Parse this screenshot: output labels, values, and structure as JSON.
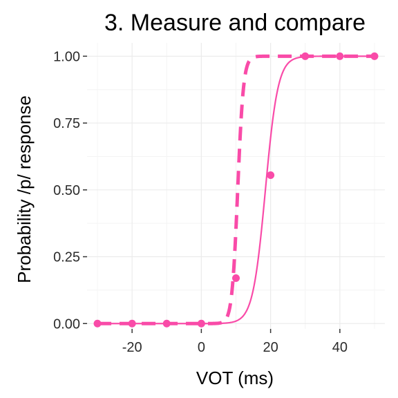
{
  "chart_data": {
    "type": "line",
    "title": "3. Measure and compare",
    "xlabel": "VOT (ms)",
    "ylabel": "Probability /p/ response",
    "xlim": [
      -33,
      53
    ],
    "ylim": [
      -0.02,
      1.05
    ],
    "x_ticks": [
      -20,
      0,
      20,
      40
    ],
    "x_tick_labels": [
      "-20",
      "0",
      "20",
      "40"
    ],
    "y_ticks": [
      0,
      0.25,
      0.5,
      0.75,
      1
    ],
    "y_tick_labels": [
      "0.00",
      "0.25",
      "0.50",
      "0.75",
      "1.00"
    ],
    "grid": true,
    "legend": "none",
    "color": "#f94ba8",
    "points": {
      "x": [
        -30,
        -20,
        -10,
        0,
        10,
        20,
        30,
        40,
        50
      ],
      "y": [
        0,
        0,
        0,
        0,
        0.17,
        0.555,
        1,
        1,
        1
      ]
    },
    "curves": [
      {
        "style": "solid",
        "x0": 18.5,
        "k": 0.55
      },
      {
        "style": "dashed",
        "x0": 10.5,
        "k": 1.2
      }
    ]
  }
}
